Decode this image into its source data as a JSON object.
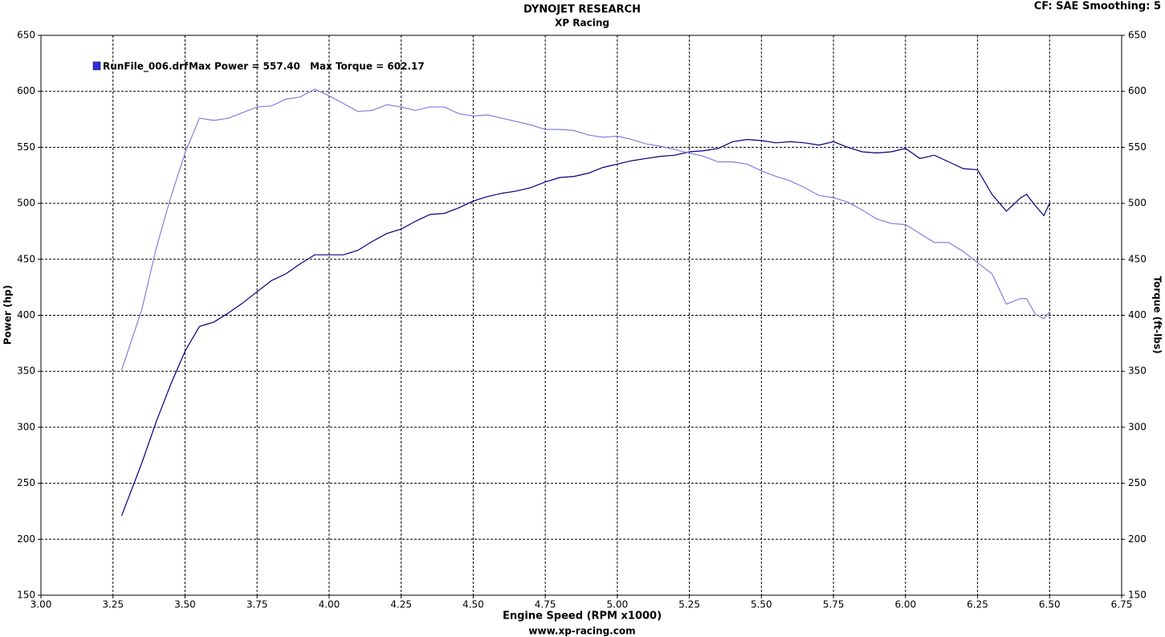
{
  "chart_data": {
    "type": "line",
    "title": "DYNOJET RESEARCH",
    "subtitle": "XP Racing",
    "corner_note": "CF: SAE  Smoothing: 5",
    "footer": "www.xp-racing.com",
    "x_label": "Engine Speed (RPM x1000)",
    "y_label": "Power (hp)",
    "y2_label": "Torque (ft-lbs)",
    "legend_text": [
      "RunFile_006.drf",
      "Max Power = 557.40",
      "Max Torque = 602.17"
    ],
    "legend_color": "#3030e0",
    "grid": true,
    "xlim": [
      3,
      6.75
    ],
    "xticks": [
      {
        "value": 3,
        "label": "3.00"
      },
      {
        "value": 3.25,
        "label": "3.25"
      },
      {
        "value": 3.5,
        "label": "3.50"
      },
      {
        "value": 3.75,
        "label": "3.75"
      },
      {
        "value": 4,
        "label": "4.00"
      },
      {
        "value": 4.25,
        "label": "4.25"
      },
      {
        "value": 4.5,
        "label": "4.50"
      },
      {
        "value": 4.75,
        "label": "4.75"
      },
      {
        "value": 5,
        "label": "5.00"
      },
      {
        "value": 5.25,
        "label": "5.25"
      },
      {
        "value": 5.5,
        "label": "5.50"
      },
      {
        "value": 5.75,
        "label": "5.75"
      },
      {
        "value": 6,
        "label": "6.00"
      },
      {
        "value": 6.25,
        "label": "6.25"
      },
      {
        "value": 6.5,
        "label": "6.50"
      },
      {
        "value": 6.75,
        "label": "6.75"
      }
    ],
    "ylim": [
      150,
      650
    ],
    "yticks": [
      150,
      200,
      250,
      300,
      350,
      400,
      450,
      500,
      550,
      600,
      650
    ],
    "y2lim": [
      150,
      650
    ],
    "y2ticks": [
      150,
      200,
      250,
      300,
      350,
      400,
      450,
      500,
      550,
      600,
      650
    ],
    "x": [
      3.28,
      3.35,
      3.4,
      3.45,
      3.5,
      3.55,
      3.6,
      3.65,
      3.7,
      3.75,
      3.8,
      3.85,
      3.9,
      3.95,
      4.0,
      4.05,
      4.1,
      4.15,
      4.2,
      4.25,
      4.3,
      4.35,
      4.4,
      4.45,
      4.5,
      4.55,
      4.6,
      4.65,
      4.7,
      4.75,
      4.8,
      4.85,
      4.9,
      4.95,
      5.0,
      5.05,
      5.1,
      5.15,
      5.2,
      5.25,
      5.3,
      5.35,
      5.4,
      5.45,
      5.5,
      5.55,
      5.6,
      5.65,
      5.7,
      5.75,
      5.8,
      5.85,
      5.9,
      5.95,
      6.0,
      6.05,
      6.1,
      6.15,
      6.2,
      6.25,
      6.3,
      6.35,
      6.4,
      6.42,
      6.45,
      6.48,
      6.5
    ],
    "series": [
      {
        "color": "#000080",
        "values": [
          221,
          268,
          305,
          338,
          368,
          390,
          394,
          402,
          411,
          421,
          431,
          437,
          446,
          454,
          454,
          454,
          458,
          466,
          473,
          477,
          484,
          490,
          491,
          496,
          502,
          506,
          509,
          511,
          514,
          519,
          523,
          524,
          527,
          532,
          535,
          538,
          540,
          542,
          543,
          546,
          547,
          549,
          555,
          557,
          556,
          554,
          555,
          554,
          552,
          555,
          550,
          546,
          545,
          546,
          549,
          540,
          543,
          537,
          531,
          530,
          508,
          493,
          505,
          508,
          498,
          489,
          500
        ]
      },
      {
        "color": "#8080e0",
        "axis": "y2",
        "values": [
          351,
          405,
          460,
          505,
          545,
          576,
          574,
          576,
          581,
          586,
          587,
          593,
          595,
          602,
          596,
          589,
          582,
          583,
          588,
          586,
          583,
          586,
          586,
          580,
          578,
          579,
          576,
          573,
          570,
          566,
          566,
          565,
          561,
          559,
          560,
          557,
          553,
          551,
          548,
          545,
          542,
          537,
          537,
          535,
          529,
          524,
          520,
          514,
          507,
          505,
          501,
          494,
          486,
          482,
          481,
          473,
          465,
          465,
          457,
          447,
          437,
          410,
          415,
          415,
          401,
          397,
          403
        ]
      }
    ]
  }
}
